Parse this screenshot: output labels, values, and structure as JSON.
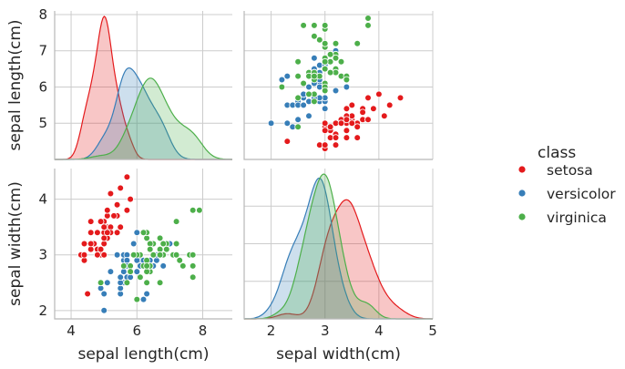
{
  "chart_data": {
    "type": "pairplot",
    "variables": [
      "sepal length(cm)",
      "sepal width(cm)"
    ],
    "hue_title": "class",
    "legend_position": "right",
    "grid": true,
    "series": [
      {
        "name": "setosa",
        "color": "#e41a1c",
        "kde_sepal_length_peak": 4.95,
        "kde_sepal_width_peak": 3.4,
        "points": [
          [
            5.1,
            3.5
          ],
          [
            4.9,
            3.0
          ],
          [
            4.7,
            3.2
          ],
          [
            4.6,
            3.1
          ],
          [
            5.0,
            3.6
          ],
          [
            5.4,
            3.9
          ],
          [
            4.6,
            3.4
          ],
          [
            5.0,
            3.4
          ],
          [
            4.4,
            2.9
          ],
          [
            4.9,
            3.1
          ],
          [
            5.4,
            3.7
          ],
          [
            4.8,
            3.4
          ],
          [
            4.8,
            3.0
          ],
          [
            4.3,
            3.0
          ],
          [
            5.8,
            4.0
          ],
          [
            5.7,
            4.4
          ],
          [
            5.4,
            3.9
          ],
          [
            5.1,
            3.5
          ],
          [
            5.7,
            3.8
          ],
          [
            5.1,
            3.8
          ],
          [
            5.4,
            3.4
          ],
          [
            5.1,
            3.7
          ],
          [
            4.6,
            3.6
          ],
          [
            5.1,
            3.3
          ],
          [
            4.8,
            3.4
          ],
          [
            5.0,
            3.0
          ],
          [
            5.0,
            3.4
          ],
          [
            5.2,
            3.5
          ],
          [
            5.2,
            3.4
          ],
          [
            4.7,
            3.2
          ],
          [
            4.8,
            3.1
          ],
          [
            5.4,
            3.4
          ],
          [
            5.2,
            4.1
          ],
          [
            5.5,
            4.2
          ],
          [
            4.9,
            3.1
          ],
          [
            5.0,
            3.2
          ],
          [
            5.5,
            3.5
          ],
          [
            4.9,
            3.6
          ],
          [
            4.4,
            3.0
          ],
          [
            5.1,
            3.4
          ],
          [
            5.0,
            3.5
          ],
          [
            4.5,
            2.3
          ],
          [
            4.4,
            3.2
          ],
          [
            5.0,
            3.5
          ],
          [
            5.1,
            3.8
          ],
          [
            4.8,
            3.0
          ],
          [
            5.1,
            3.8
          ],
          [
            4.6,
            3.2
          ],
          [
            5.3,
            3.7
          ],
          [
            5.0,
            3.3
          ]
        ]
      },
      {
        "name": "versicolor",
        "color": "#377eb8",
        "kde_sepal_length_peak": 5.75,
        "kde_sepal_width_peak": 2.85,
        "points": [
          [
            7.0,
            3.2
          ],
          [
            6.4,
            3.2
          ],
          [
            6.9,
            3.1
          ],
          [
            5.5,
            2.3
          ],
          [
            6.5,
            2.8
          ],
          [
            5.7,
            2.8
          ],
          [
            6.3,
            3.3
          ],
          [
            4.9,
            2.4
          ],
          [
            6.6,
            2.9
          ],
          [
            5.2,
            2.7
          ],
          [
            5.0,
            2.0
          ],
          [
            5.9,
            3.0
          ],
          [
            6.0,
            2.2
          ],
          [
            6.1,
            2.9
          ],
          [
            5.6,
            2.9
          ],
          [
            6.7,
            3.1
          ],
          [
            5.6,
            3.0
          ],
          [
            5.8,
            2.7
          ],
          [
            6.2,
            2.2
          ],
          [
            5.6,
            2.5
          ],
          [
            5.9,
            3.2
          ],
          [
            6.1,
            2.8
          ],
          [
            6.3,
            2.5
          ],
          [
            6.1,
            2.8
          ],
          [
            6.4,
            2.9
          ],
          [
            6.6,
            3.0
          ],
          [
            6.8,
            2.8
          ],
          [
            6.7,
            3.0
          ],
          [
            6.0,
            2.9
          ],
          [
            5.7,
            2.6
          ],
          [
            5.5,
            2.4
          ],
          [
            5.5,
            2.4
          ],
          [
            5.8,
            2.7
          ],
          [
            6.0,
            2.7
          ],
          [
            5.4,
            3.0
          ],
          [
            6.0,
            3.4
          ],
          [
            6.7,
            3.1
          ],
          [
            6.3,
            2.3
          ],
          [
            5.6,
            3.0
          ],
          [
            5.5,
            2.5
          ],
          [
            5.5,
            2.6
          ],
          [
            6.1,
            3.0
          ],
          [
            5.8,
            2.6
          ],
          [
            5.0,
            2.3
          ],
          [
            5.6,
            2.7
          ],
          [
            5.7,
            3.0
          ],
          [
            5.7,
            2.9
          ],
          [
            6.2,
            2.9
          ],
          [
            5.1,
            2.5
          ],
          [
            5.7,
            2.8
          ]
        ]
      },
      {
        "name": "virginica",
        "color": "#4daf4a",
        "kde_sepal_length_peak": 6.4,
        "kde_sepal_width_peak": 3.0,
        "points": [
          [
            6.3,
            3.3
          ],
          [
            5.8,
            2.7
          ],
          [
            7.1,
            3.0
          ],
          [
            6.3,
            2.9
          ],
          [
            6.5,
            3.0
          ],
          [
            7.6,
            3.0
          ],
          [
            4.9,
            2.5
          ],
          [
            7.3,
            2.9
          ],
          [
            6.7,
            2.5
          ],
          [
            7.2,
            3.6
          ],
          [
            6.5,
            3.2
          ],
          [
            6.4,
            2.7
          ],
          [
            6.8,
            3.0
          ],
          [
            5.7,
            2.5
          ],
          [
            5.8,
            2.8
          ],
          [
            6.4,
            3.2
          ],
          [
            6.5,
            3.0
          ],
          [
            7.7,
            3.8
          ],
          [
            7.7,
            2.6
          ],
          [
            6.0,
            2.2
          ],
          [
            6.9,
            3.2
          ],
          [
            5.6,
            2.8
          ],
          [
            7.7,
            2.8
          ],
          [
            6.3,
            2.7
          ],
          [
            6.7,
            3.3
          ],
          [
            7.2,
            3.2
          ],
          [
            6.2,
            2.8
          ],
          [
            6.1,
            3.0
          ],
          [
            6.4,
            2.8
          ],
          [
            7.2,
            3.0
          ],
          [
            7.4,
            2.8
          ],
          [
            7.9,
            3.8
          ],
          [
            6.4,
            2.8
          ],
          [
            6.3,
            2.8
          ],
          [
            6.1,
            2.6
          ],
          [
            7.7,
            3.0
          ],
          [
            6.3,
            3.4
          ],
          [
            6.4,
            3.1
          ],
          [
            6.0,
            3.0
          ],
          [
            6.9,
            3.1
          ],
          [
            6.7,
            3.1
          ],
          [
            6.9,
            3.1
          ],
          [
            5.8,
            2.7
          ],
          [
            6.8,
            3.2
          ],
          [
            6.7,
            3.3
          ],
          [
            6.7,
            3.0
          ],
          [
            6.3,
            2.5
          ],
          [
            6.5,
            3.0
          ],
          [
            6.2,
            3.4
          ],
          [
            5.9,
            3.0
          ]
        ]
      }
    ],
    "panels": [
      {
        "name": "sepal-length-kde",
        "kind": "kde",
        "var": 0,
        "xlim": [
          3.5,
          8.9
        ],
        "ylim_label": [
          4.0,
          8.1
        ],
        "yticks": [
          "5",
          "6",
          "7",
          "8"
        ],
        "ytick_values": [
          5,
          6,
          7,
          8
        ],
        "xticks": [],
        "ylabel": "sepal length(cm)",
        "xlabel": ""
      },
      {
        "name": "length-vs-width-scatter",
        "kind": "scatter",
        "xvar": 1,
        "yvar": 0,
        "xlim": [
          1.5,
          5.0
        ],
        "ylim": [
          4.0,
          8.1
        ],
        "yticks": [],
        "xticks": [],
        "ylabel": "",
        "xlabel": ""
      },
      {
        "name": "width-vs-length-scatter",
        "kind": "scatter",
        "xvar": 0,
        "yvar": 1,
        "xlim": [
          3.5,
          8.9
        ],
        "ylim": [
          1.85,
          4.55
        ],
        "yticks": [
          "2",
          "3",
          "4"
        ],
        "ytick_values": [
          2,
          3,
          4
        ],
        "xticks": [
          "4",
          "6",
          "8"
        ],
        "xtick_values": [
          4,
          6,
          8
        ],
        "ylabel": "sepal width(cm)",
        "xlabel": "sepal length(cm)"
      },
      {
        "name": "sepal-width-kde",
        "kind": "kde",
        "var": 1,
        "xlim": [
          1.5,
          5.0
        ],
        "xticks": [
          "2",
          "3",
          "4",
          "5"
        ],
        "xtick_values": [
          2,
          3,
          4,
          5
        ],
        "yticks": [],
        "ylabel": "",
        "xlabel": "sepal width(cm)"
      }
    ]
  }
}
